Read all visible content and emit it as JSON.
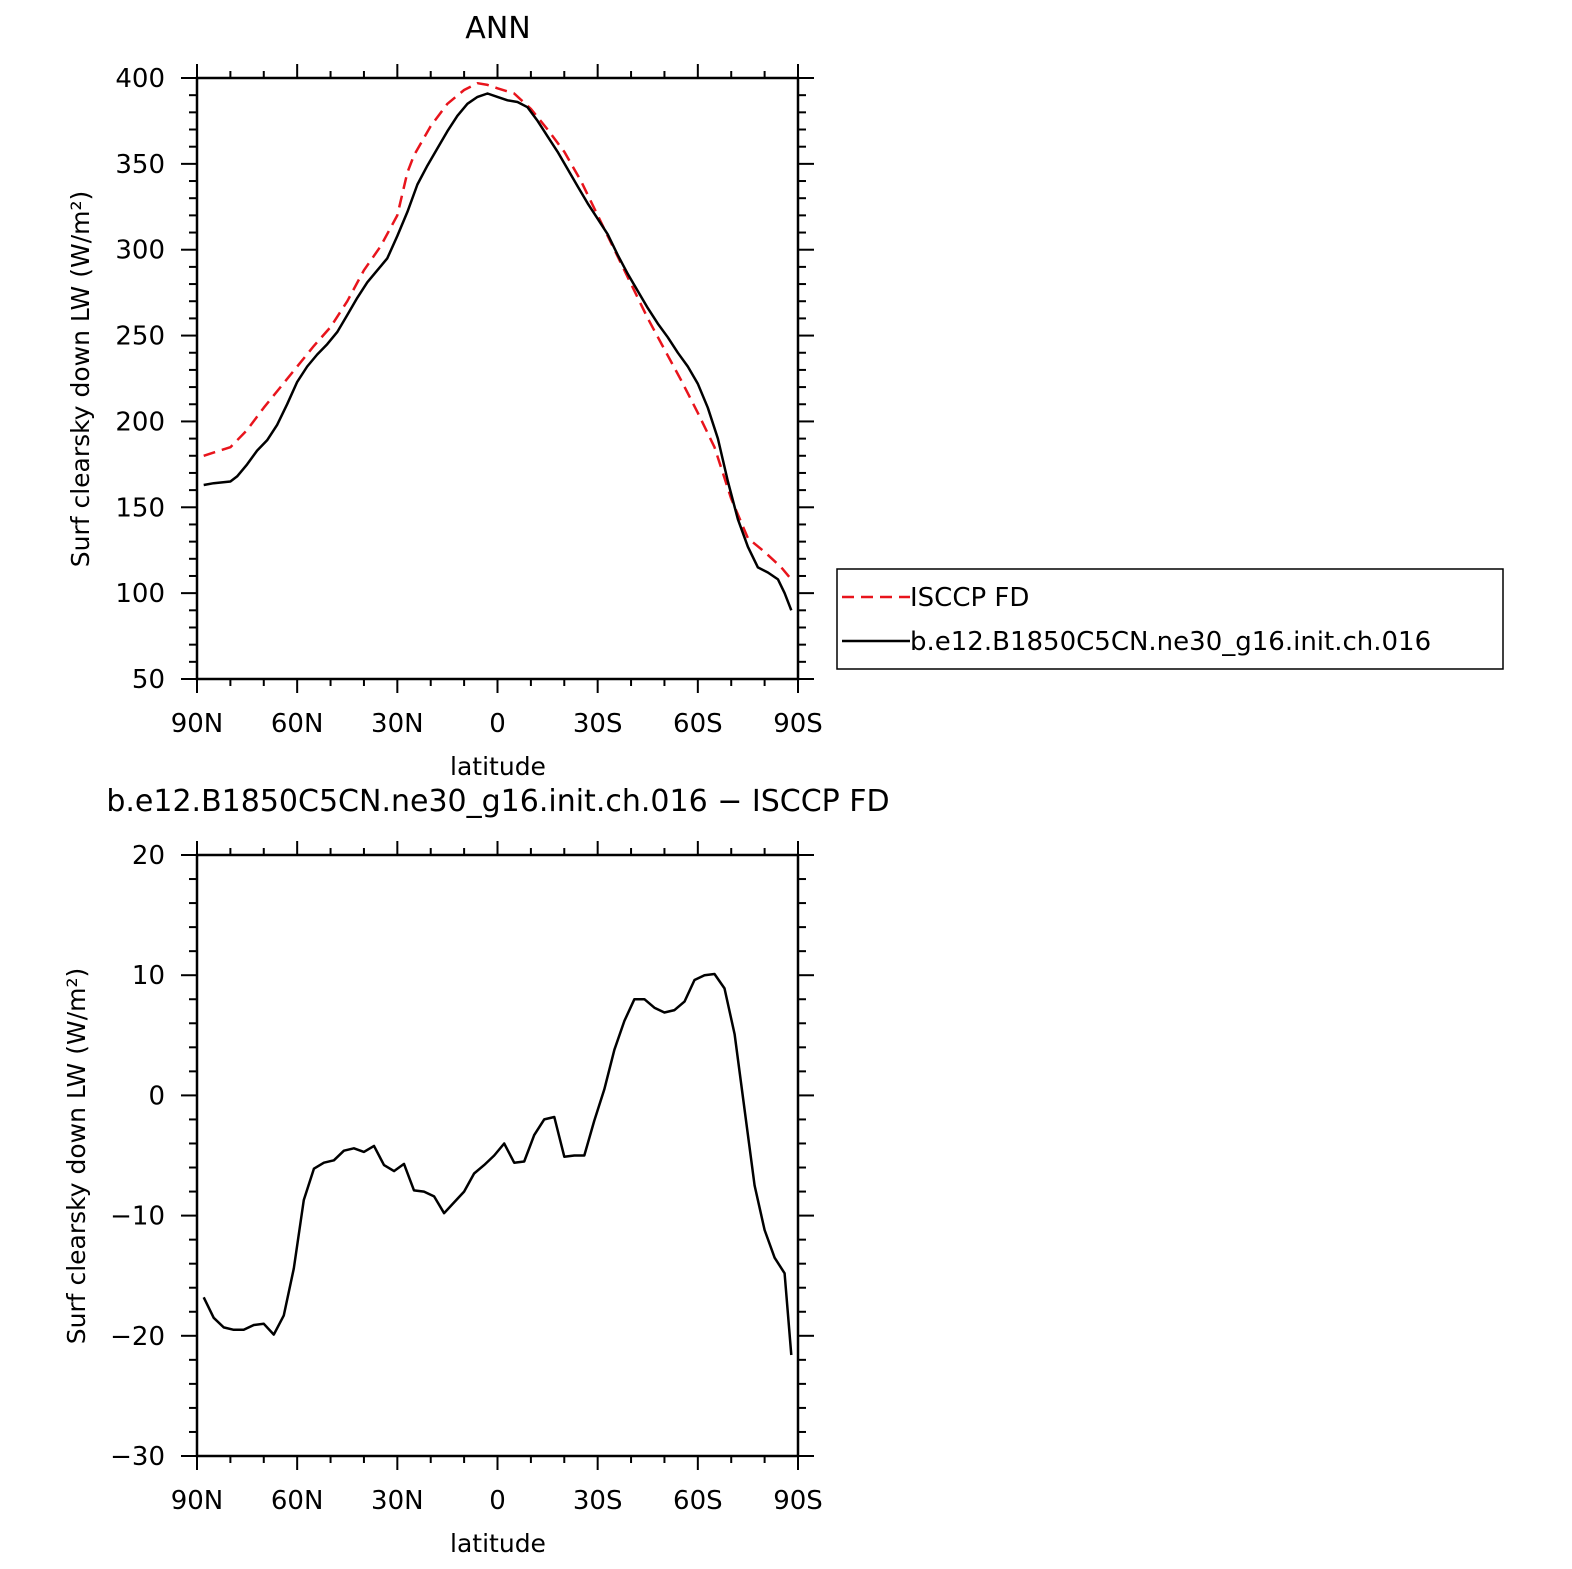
{
  "chart_data": [
    {
      "type": "line",
      "title": "ANN",
      "xlabel": "latitude",
      "ylabel": "Surf clearsky down LW (W/m²)",
      "xlim": [
        90,
        -90
      ],
      "ylim": [
        50,
        400
      ],
      "xticks": [
        90,
        60,
        30,
        0,
        -30,
        -60,
        -90
      ],
      "xtick_labels": [
        "90N",
        "60N",
        "30N",
        "0",
        "30S",
        "60S",
        "90S"
      ],
      "yticks": [
        50,
        100,
        150,
        200,
        250,
        300,
        350,
        400
      ],
      "ytick_labels": [
        "50",
        "100",
        "150",
        "200",
        "250",
        "300",
        "350",
        "400"
      ],
      "grid": false,
      "legend": "right",
      "series": [
        {
          "name": "ISCCP FD",
          "color": "#e8141c",
          "dash": "dashed",
          "x": [
            88,
            80,
            75,
            70,
            65,
            60,
            55,
            50,
            45,
            40,
            35,
            30,
            27,
            25,
            20,
            15,
            10,
            6,
            3,
            0,
            -5,
            -10,
            -15,
            -20,
            -25,
            -30,
            -35,
            -40,
            -45,
            -50,
            -55,
            -60,
            -65,
            -70,
            -75,
            -80,
            -85,
            -88
          ],
          "y": [
            180,
            185,
            195,
            208,
            220,
            232,
            244,
            255,
            270,
            288,
            302,
            320,
            345,
            355,
            372,
            385,
            393,
            397,
            396,
            394,
            391,
            382,
            370,
            357,
            340,
            320,
            300,
            280,
            260,
            242,
            224,
            205,
            185,
            155,
            132,
            124,
            115,
            108
          ]
        },
        {
          "name": "b.e12.B1850C5CN.ne30_g16.init.ch.016",
          "color": "#000000",
          "dash": "solid",
          "x": [
            88,
            85,
            80,
            78,
            75,
            72,
            69,
            66,
            63,
            60,
            57,
            54,
            51,
            48,
            45,
            42,
            39,
            36,
            33,
            30,
            27,
            24,
            21,
            18,
            15,
            12,
            9,
            6,
            3,
            0,
            -3,
            -6,
            -9,
            -12,
            -15,
            -18,
            -21,
            -24,
            -27,
            -30,
            -33,
            -36,
            -39,
            -42,
            -45,
            -48,
            -51,
            -54,
            -57,
            -60,
            -63,
            -66,
            -69,
            -72,
            -75,
            -78,
            -81,
            -84,
            -86,
            -88
          ],
          "y": [
            163,
            164,
            165,
            168,
            175,
            183,
            189,
            198,
            210,
            223,
            232,
            239,
            245,
            252,
            262,
            272,
            281,
            288,
            295,
            308,
            322,
            338,
            349,
            359,
            369,
            378,
            385,
            389,
            391,
            389,
            387,
            386,
            383,
            375,
            366,
            357,
            347,
            337,
            327,
            318,
            309,
            297,
            286,
            276,
            266,
            257,
            249,
            240,
            232,
            222,
            208,
            190,
            165,
            143,
            127,
            115,
            112,
            108,
            100,
            90
          ]
        }
      ]
    },
    {
      "type": "line",
      "title": "b.e12.B1850C5CN.ne30_g16.init.ch.016 − ISCCP FD",
      "xlabel": "latitude",
      "ylabel": "Surf clearsky down LW (W/m²)",
      "xlim": [
        90,
        -90
      ],
      "ylim": [
        -30,
        20
      ],
      "xticks": [
        90,
        60,
        30,
        0,
        -30,
        -60,
        -90
      ],
      "xtick_labels": [
        "90N",
        "60N",
        "30N",
        "0",
        "30S",
        "60S",
        "90S"
      ],
      "yticks": [
        -30,
        -20,
        -10,
        0,
        10,
        20
      ],
      "ytick_labels": [
        "−30",
        "−20",
        "−10",
        "0",
        "10",
        "20"
      ],
      "grid": false,
      "series": [
        {
          "color": "#000000",
          "dash": "solid",
          "x": [
            88,
            85,
            82,
            79,
            76,
            73,
            70,
            67,
            64,
            61,
            58,
            55,
            52,
            49,
            46,
            43,
            40,
            37,
            34,
            31,
            28,
            25,
            22,
            19,
            16,
            13,
            10,
            7,
            4,
            1,
            -2,
            -5,
            -8,
            -11,
            -14,
            -17,
            -20,
            -23,
            -26,
            -29,
            -32,
            -35,
            -38,
            -41,
            -44,
            -47,
            -50,
            -53,
            -56,
            -59,
            -62,
            -65,
            -68,
            -71,
            -74,
            -77,
            -80,
            -83,
            -86,
            -88
          ],
          "y": [
            -16.8,
            -18.5,
            -19.3,
            -19.5,
            -19.5,
            -19.1,
            -19.0,
            -19.9,
            -18.3,
            -14.4,
            -8.7,
            -6.1,
            -5.6,
            -5.4,
            -4.6,
            -4.4,
            -4.7,
            -4.2,
            -5.8,
            -6.3,
            -5.7,
            -7.9,
            -8.0,
            -8.4,
            -9.8,
            -8.9,
            -8.0,
            -6.5,
            -5.8,
            -5.0,
            -4.0,
            -5.6,
            -5.5,
            -3.3,
            -2.0,
            -1.8,
            -5.1,
            -5.0,
            -5.0,
            -2.1,
            0.5,
            3.8,
            6.2,
            8.0,
            8.0,
            7.3,
            6.9,
            7.1,
            7.8,
            9.6,
            10.0,
            10.1,
            8.9,
            5.1,
            -1.2,
            -7.5,
            -11.2,
            -13.5,
            -14.8,
            -21.6
          ]
        }
      ]
    }
  ]
}
